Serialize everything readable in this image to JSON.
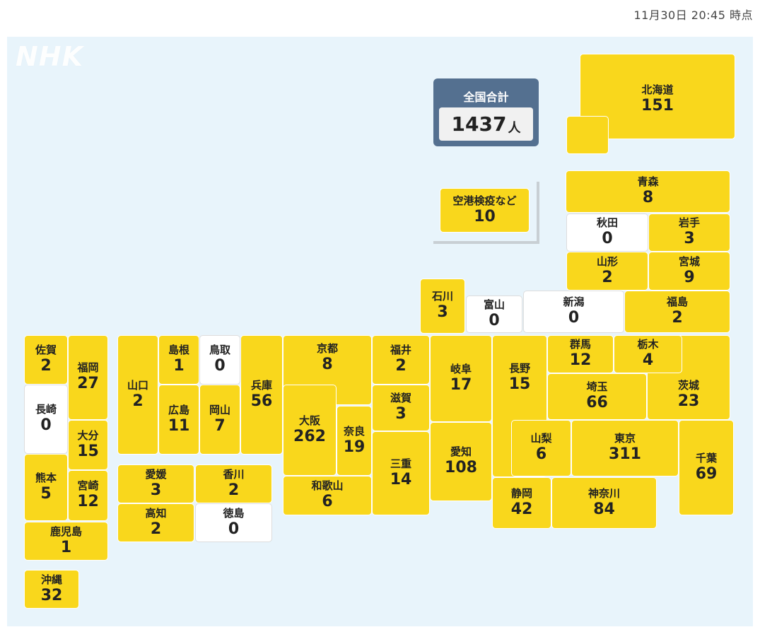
{
  "timestamp": "11月30日 20:45 時点",
  "logo": "NHK",
  "total": {
    "label": "全国合計",
    "value": "1437",
    "unit": "人"
  },
  "quarantine": {
    "name": "空港検疫など",
    "count": "10"
  },
  "colors": {
    "case": "#f9d71c",
    "zero": "#ffffff",
    "background": "#e8f4fb",
    "total_box": "#547090"
  },
  "prefectures": {
    "hokkaido": {
      "name": "北海道",
      "count": "151"
    },
    "aomori": {
      "name": "青森",
      "count": "8"
    },
    "akita": {
      "name": "秋田",
      "count": "0"
    },
    "iwate": {
      "name": "岩手",
      "count": "3"
    },
    "yamagata": {
      "name": "山形",
      "count": "2"
    },
    "miyagi": {
      "name": "宮城",
      "count": "9"
    },
    "ishikawa": {
      "name": "石川",
      "count": "3"
    },
    "toyama": {
      "name": "富山",
      "count": "0"
    },
    "niigata": {
      "name": "新潟",
      "count": "0"
    },
    "fukushima": {
      "name": "福島",
      "count": "2"
    },
    "saga": {
      "name": "佐賀",
      "count": "2"
    },
    "fukuoka": {
      "name": "福岡",
      "count": "27"
    },
    "nagasaki": {
      "name": "長崎",
      "count": "0"
    },
    "oita": {
      "name": "大分",
      "count": "15"
    },
    "kumamoto": {
      "name": "熊本",
      "count": "5"
    },
    "miyazaki": {
      "name": "宮崎",
      "count": "12"
    },
    "kagoshima": {
      "name": "鹿児島",
      "count": "1"
    },
    "okinawa": {
      "name": "沖縄",
      "count": "32"
    },
    "yamaguchi": {
      "name": "山口",
      "count": "2"
    },
    "shimane": {
      "name": "島根",
      "count": "1"
    },
    "tottori": {
      "name": "鳥取",
      "count": "0"
    },
    "hiroshima": {
      "name": "広島",
      "count": "11"
    },
    "okayama": {
      "name": "岡山",
      "count": "7"
    },
    "hyogo": {
      "name": "兵庫",
      "count": "56"
    },
    "ehime": {
      "name": "愛媛",
      "count": "3"
    },
    "kagawa": {
      "name": "香川",
      "count": "2"
    },
    "kochi": {
      "name": "高知",
      "count": "2"
    },
    "tokushima": {
      "name": "徳島",
      "count": "0"
    },
    "kyoto": {
      "name": "京都",
      "count": "8"
    },
    "osaka": {
      "name": "大阪",
      "count": "262"
    },
    "nara": {
      "name": "奈良",
      "count": "19"
    },
    "wakayama": {
      "name": "和歌山",
      "count": "6"
    },
    "fukui": {
      "name": "福井",
      "count": "2"
    },
    "shiga": {
      "name": "滋賀",
      "count": "3"
    },
    "mie": {
      "name": "三重",
      "count": "14"
    },
    "gifu": {
      "name": "岐阜",
      "count": "17"
    },
    "aichi": {
      "name": "愛知",
      "count": "108"
    },
    "nagano": {
      "name": "長野",
      "count": "15"
    },
    "gunma": {
      "name": "群馬",
      "count": "12"
    },
    "tochigi": {
      "name": "栃木",
      "count": "4"
    },
    "saitama": {
      "name": "埼玉",
      "count": "66"
    },
    "ibaraki": {
      "name": "茨城",
      "count": "23"
    },
    "yamanashi": {
      "name": "山梨",
      "count": "6"
    },
    "tokyo": {
      "name": "東京",
      "count": "311"
    },
    "chiba": {
      "name": "千葉",
      "count": "69"
    },
    "shizuoka": {
      "name": "静岡",
      "count": "42"
    },
    "kanagawa": {
      "name": "神奈川",
      "count": "84"
    }
  }
}
